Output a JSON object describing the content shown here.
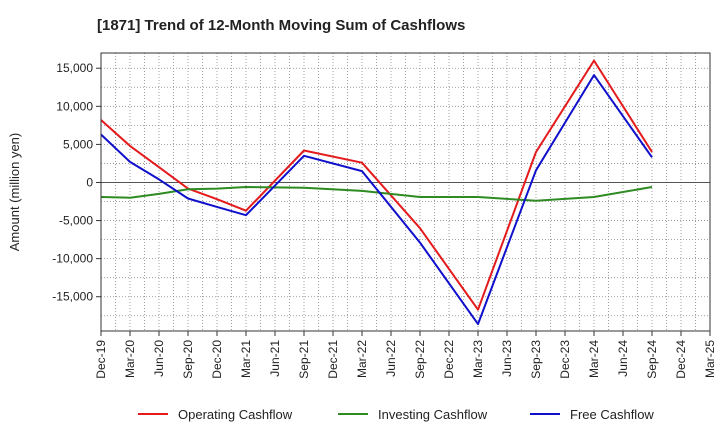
{
  "chart_data": {
    "type": "line",
    "title": "[1871]  Trend of 12-Month Moving Sum of Cashflows",
    "xlabel": "",
    "ylabel": "Amount (million yen)",
    "categories": [
      "Dec-19",
      "Mar-20",
      "Jun-20",
      "Sep-20",
      "Dec-20",
      "Mar-21",
      "Jun-21",
      "Sep-21",
      "Dec-21",
      "Mar-22",
      "Jun-22",
      "Sep-22",
      "Dec-22",
      "Mar-23",
      "Jun-23",
      "Sep-23",
      "Dec-23",
      "Mar-24",
      "Jun-24",
      "Sep-24",
      "Dec-24",
      "Mar-25"
    ],
    "ylim": [
      -19500,
      17000
    ],
    "yticks": [
      15000,
      10000,
      5000,
      0,
      -5000,
      -10000,
      -15000
    ],
    "ytick_labels": [
      "15,000",
      "10,000",
      "5,000",
      "0",
      "-5,000",
      "-10,000",
      "-15,000"
    ],
    "grid": true,
    "legend_position": "bottom",
    "series": [
      {
        "name": "Operating Cashflow",
        "color": "#e41a1c",
        "values": [
          8200,
          4800,
          2000,
          -800,
          -2200,
          -3700,
          null,
          4200,
          null,
          2600,
          null,
          -6000,
          null,
          -16700,
          null,
          4000,
          null,
          16000,
          null,
          4000,
          null,
          null
        ]
      },
      {
        "name": "Investing Cashflow",
        "color": "#2e8b22",
        "values": [
          -1900,
          -2000,
          -1500,
          -900,
          -800,
          -600,
          null,
          -700,
          null,
          -1100,
          null,
          -1900,
          null,
          -1900,
          null,
          -2400,
          null,
          -1900,
          null,
          -600,
          null,
          null
        ]
      },
      {
        "name": "Free Cashflow",
        "color": "#1010cc",
        "values": [
          6300,
          2700,
          400,
          -2100,
          -3200,
          -4300,
          null,
          3500,
          null,
          1500,
          null,
          -7900,
          null,
          -18600,
          null,
          1600,
          null,
          14100,
          null,
          3300,
          null,
          null
        ]
      }
    ]
  }
}
